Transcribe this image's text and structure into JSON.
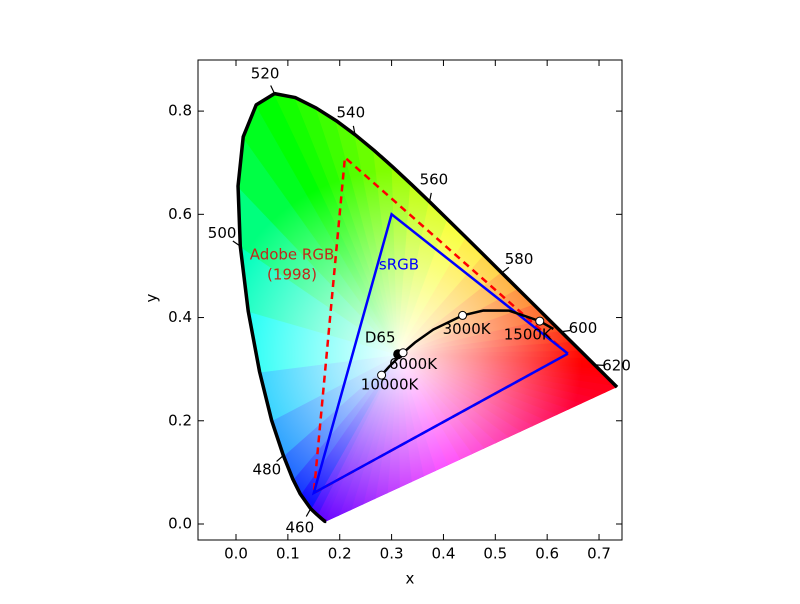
{
  "chart_data": {
    "type": "chromaticity",
    "xlabel": "x",
    "ylabel": "y",
    "xlim": [
      -0.0733,
      0.7443
    ],
    "ylim": [
      -0.031,
      0.899
    ],
    "xticks": [
      {
        "value": 0,
        "label": "0.0"
      },
      0.1,
      0.2,
      0.3,
      0.4,
      0.5,
      0.6,
      0.7
    ],
    "yticks": [
      {
        "value": 0,
        "label": "0.0"
      },
      0.2,
      0.4,
      0.6,
      0.8
    ],
    "spectral_locus": {
      "color": "#000000",
      "x": [
        0.1741,
        0.1714,
        0.1644,
        0.1566,
        0.144,
        0.1241,
        0.1096,
        0.0913,
        0.0687,
        0.0454,
        0.0235,
        0.0082,
        0.0039,
        0.0139,
        0.0389,
        0.0743,
        0.1142,
        0.1547,
        0.1929,
        0.2296,
        0.2658,
        0.3016,
        0.3373,
        0.3731,
        0.4087,
        0.4441,
        0.4788,
        0.5125,
        0.5448,
        0.5752,
        0.6029,
        0.627,
        0.6482,
        0.6658,
        0.6801,
        0.6915,
        0.7006,
        0.7079,
        0.714,
        0.719,
        0.7347
      ],
      "values": [
        0.005,
        0.0051,
        0.0109,
        0.0177,
        0.0297,
        0.0578,
        0.0868,
        0.1327,
        0.2007,
        0.295,
        0.4127,
        0.5384,
        0.6548,
        0.7502,
        0.812,
        0.8338,
        0.8262,
        0.8059,
        0.7816,
        0.7543,
        0.7243,
        0.6923,
        0.6589,
        0.6245,
        0.5896,
        0.5547,
        0.5202,
        0.4866,
        0.4544,
        0.4242,
        0.3965,
        0.3725,
        0.3514,
        0.334,
        0.3197,
        0.3083,
        0.2993,
        0.292,
        0.2859,
        0.2809,
        0.2653
      ],
      "wavelength_labels": [
        {
          "label": 460,
          "x": 0.144,
          "y": 0.0297
        },
        {
          "label": 480,
          "x": 0.0913,
          "y": 0.1327
        },
        {
          "label": 500,
          "x": 0.0082,
          "y": 0.5384
        },
        {
          "label": 520,
          "x": 0.0743,
          "y": 0.8338
        },
        {
          "label": 540,
          "x": 0.2296,
          "y": 0.7543
        },
        {
          "label": 560,
          "x": 0.3731,
          "y": 0.6245
        },
        {
          "label": 580,
          "x": 0.5125,
          "y": 0.4866
        },
        {
          "label": 600,
          "x": 0.627,
          "y": 0.3725
        },
        {
          "label": 620,
          "x": 0.6915,
          "y": 0.3083
        }
      ]
    },
    "gamuts": [
      {
        "label": [
          "Adobe RGB",
          "(1998)"
        ],
        "color": "#ff0000",
        "label_color": "#c0281c",
        "dashed": true,
        "x": [
          0.64,
          0.21,
          0.15,
          0.64
        ],
        "values": [
          0.33,
          0.71,
          0.06,
          0.33
        ]
      },
      {
        "label": [
          "sRGB"
        ],
        "color": "#0000ff",
        "label_color": "#0000ff",
        "dashed": false,
        "x": [
          0.64,
          0.3,
          0.15,
          0.64
        ],
        "values": [
          0.33,
          0.6,
          0.06,
          0.33
        ]
      }
    ],
    "planckian_locus": {
      "color": "#000000",
      "x": [
        0.612,
        0.5857,
        0.5267,
        0.477,
        0.4369,
        0.3805,
        0.3451,
        0.3221,
        0.2952,
        0.2807
      ],
      "values": [
        0.378,
        0.3931,
        0.4133,
        0.4137,
        0.4041,
        0.3768,
        0.3516,
        0.3318,
        0.3048,
        0.2884
      ],
      "marker_color": "#ffffff",
      "points": [
        {
          "label": "1500K",
          "x": 0.5857,
          "y": 0.3931
        },
        {
          "label": "3000K",
          "x": 0.4369,
          "y": 0.4041
        },
        {
          "label": "6000K",
          "x": 0.3221,
          "y": 0.3318
        },
        {
          "label": "10000K",
          "x": 0.2807,
          "y": 0.2884
        }
      ]
    },
    "white_point": {
      "label": "D65",
      "x": 0.3127,
      "y": 0.329,
      "color": "#000000"
    }
  }
}
